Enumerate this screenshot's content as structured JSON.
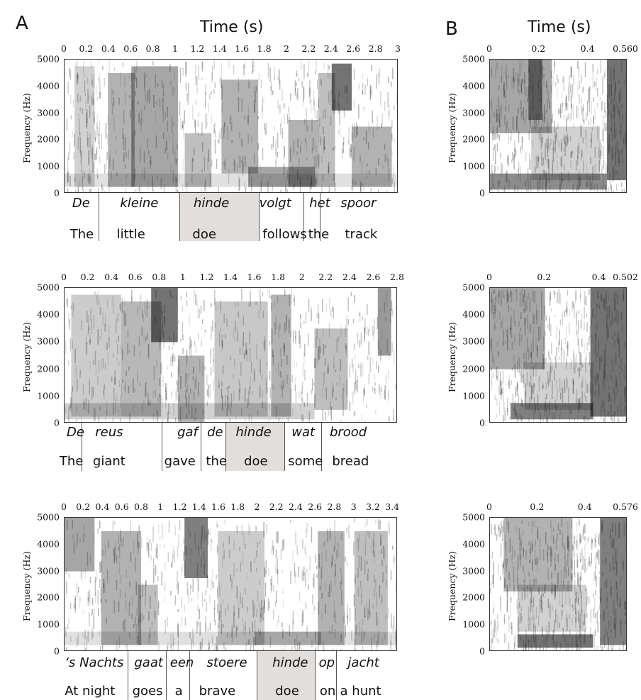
{
  "panel_labels": {
    "a": "A",
    "b": "B"
  },
  "time_header": "Time (s)",
  "y_axis_label": "Frequency (Hz)",
  "y_ticks": [
    "5000",
    "4000",
    "3000",
    "2000",
    "1000",
    "0"
  ],
  "rows": [
    {
      "a_ticks": [
        "0",
        "0.2",
        "0.4",
        "0.6",
        "0.8",
        "1",
        "1.2",
        "1.4",
        "1.6",
        "1.8",
        "2",
        "2.2",
        "2.4",
        "2.6",
        "2.8",
        "3"
      ],
      "b_ticks": [
        "0",
        "0.2",
        "0.4",
        "0.560"
      ],
      "dutch": [
        "De",
        "kleine",
        "hinde",
        "volgt",
        "het",
        "spoor"
      ],
      "english": [
        "The",
        "little",
        "doe",
        "follows",
        "the",
        "track"
      ]
    },
    {
      "a_ticks": [
        "0",
        "0.2",
        "0.4",
        "0.6",
        "0.8",
        "1",
        "1.2",
        "1.4",
        "1.6",
        "1.8",
        "2",
        "2.2",
        "2.4",
        "2.6",
        "2.8"
      ],
      "b_ticks": [
        "0",
        "0.2",
        "0.4",
        "0.502"
      ],
      "dutch": [
        "De",
        "reus",
        "gaf",
        "de",
        "hinde",
        "wat",
        "brood"
      ],
      "english": [
        "The",
        "giant",
        "gave",
        "the",
        "doe",
        "some",
        "bread"
      ]
    },
    {
      "a_ticks": [
        "0",
        "0.2",
        "0.4",
        "0.6",
        "0.8",
        "1",
        "1.2",
        "1.4",
        "1.6",
        "1.8",
        "2",
        "2.2",
        "2.4",
        "2.6",
        "2.8",
        "3",
        "3.2",
        "3.4"
      ],
      "b_ticks": [
        "0",
        "0.2",
        "0.4",
        "0.576"
      ],
      "dutch": [
        "‘s Nachts",
        "gaat",
        "een",
        "stoere",
        "hinde",
        "op",
        "jacht"
      ],
      "english": [
        "At night",
        "goes",
        "a",
        "brave",
        "doe",
        "on",
        "a hunt"
      ]
    }
  ]
}
